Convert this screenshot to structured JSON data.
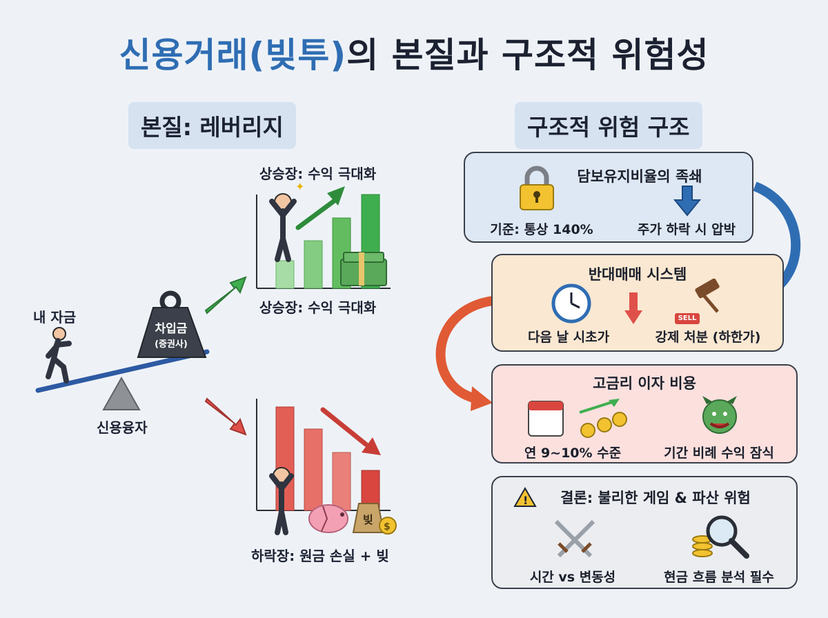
{
  "title_part1": "신용거래(빚투)",
  "title_part2": "의 본질과 구조적 위험성",
  "left_section": {
    "label": "본질: 레버리지",
    "my_money": "내 자금",
    "weight_label": "차입금",
    "weight_sub": "(증권사)",
    "fulcrum_label": "신용융자",
    "bull_top": "상승장: 수익 극대화",
    "bull_bottom": "상승장: 수익 극대화",
    "bear_bottom": "하락장: 원금 손실 + 빚",
    "debt_bag": "빚"
  },
  "right_section": {
    "label": "구조적 위험 구조",
    "collateral": {
      "title": "담보유지비율의 족쇄",
      "left_text": "기준: 통상 140%",
      "right_text": "주가 하락 시 압박"
    },
    "liquidation": {
      "title": "반대매매 시스템",
      "left_text": "다음 날 시초가",
      "right_text": "강제 처분 (하한가)",
      "sell_tag": "SELL"
    },
    "interest": {
      "title": "고금리 이자 비용",
      "left_text": "연 9~10% 수준",
      "right_text": "기간 비례 수익 잠식"
    },
    "conclusion": {
      "title": "결론: 불리한 게임 & 파산 위험",
      "left_text": "시간 vs 변동성",
      "right_text": "현금 흐름 분석 필수"
    }
  },
  "colors": {
    "title_blue": "#2f6db3",
    "bull_green": "#3fae4f",
    "bear_red": "#e0504a",
    "flow_blue": "#2f6db3",
    "flow_red": "#e05a35"
  }
}
